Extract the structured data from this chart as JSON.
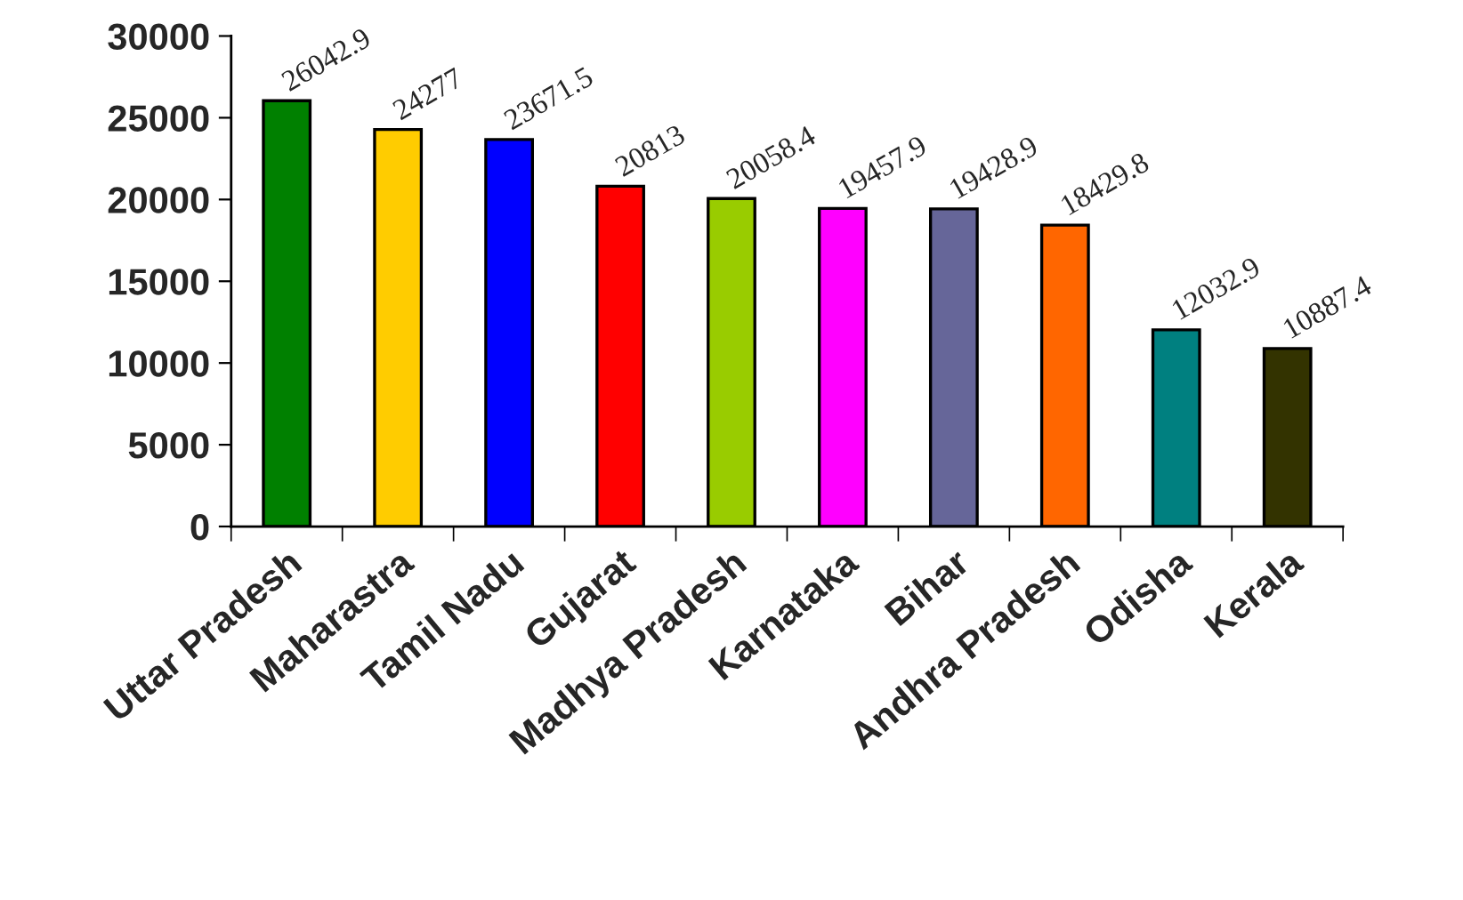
{
  "chart_data": {
    "type": "bar",
    "categories": [
      "Uttar Pradesh",
      "Maharastra",
      "Tamil Nadu",
      "Gujarat",
      "Madhya Pradesh",
      "Karnataka",
      "Bihar",
      "Andhra Pradesh",
      "Odisha",
      "Kerala"
    ],
    "values": [
      26042.9,
      24277,
      23671.5,
      20813,
      20058.4,
      19457.9,
      19428.9,
      18429.8,
      12032.9,
      10887.4
    ],
    "colors": [
      "#008000",
      "#ffcc00",
      "#0000ff",
      "#ff0000",
      "#99cc00",
      "#ff00ff",
      "#666699",
      "#ff6600",
      "#008080",
      "#333300"
    ],
    "ylim": [
      0,
      30000
    ],
    "yticks": [
      0,
      5000,
      10000,
      15000,
      20000,
      25000,
      30000
    ],
    "data_labels": true,
    "grid": false,
    "legend": false
  }
}
